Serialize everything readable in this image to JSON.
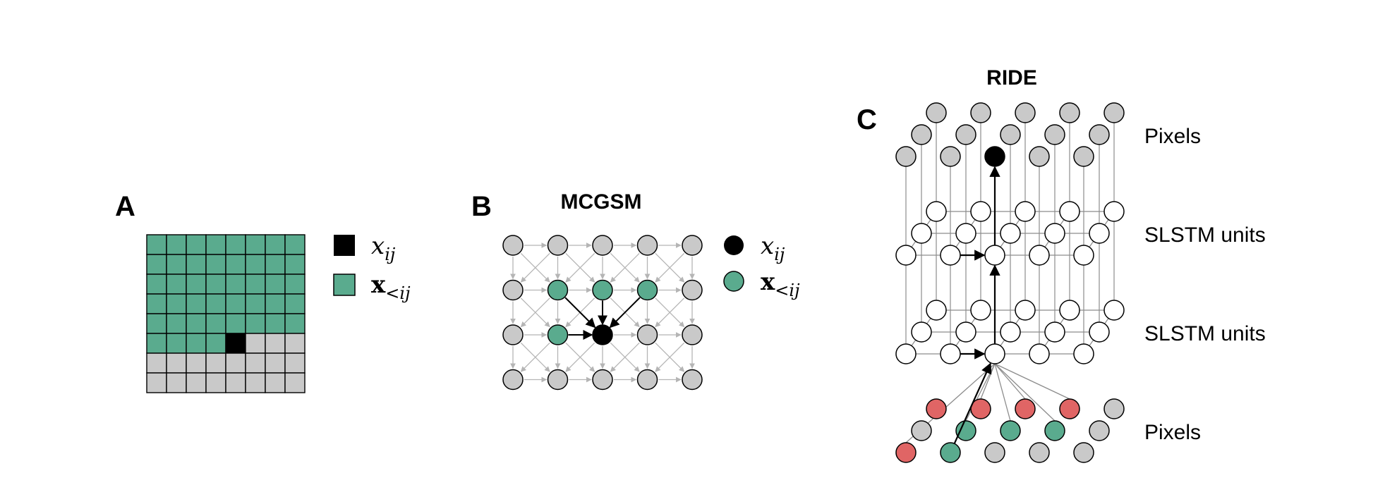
{
  "panels": {
    "a": {
      "letter": "A",
      "grid": {
        "rows": 8,
        "cols": 8,
        "current_row": 5,
        "current_col": 4
      },
      "legend": [
        {
          "symbol": "x",
          "sub": "ij",
          "bold": false
        },
        {
          "symbol": "x",
          "sub": "<ij",
          "bold": true
        }
      ]
    },
    "b": {
      "letter": "B",
      "title": "MCGSM",
      "grid": {
        "rows": 4,
        "cols": 5,
        "current_row": 2,
        "current_col": 2,
        "context": [
          [
            1,
            1
          ],
          [
            1,
            2
          ],
          [
            1,
            3
          ],
          [
            2,
            1
          ]
        ]
      },
      "legend": [
        {
          "symbol": "x",
          "sub": "ij",
          "bold": false
        },
        {
          "symbol": "x",
          "sub": "<ij",
          "bold": true
        }
      ]
    },
    "c": {
      "letter": "C",
      "title": "RIDE",
      "layer_labels": [
        "Pixels",
        "SLSTM  units",
        "SLSTM  units",
        "Pixels"
      ]
    }
  },
  "colors": {
    "context": "#5aab8e",
    "future": "#c9c9c9",
    "current": "#000000",
    "unit": "#ffffff",
    "input_red": "#e06565",
    "edge_light": "#b5b5b5",
    "edge": "#8c8c8c"
  }
}
